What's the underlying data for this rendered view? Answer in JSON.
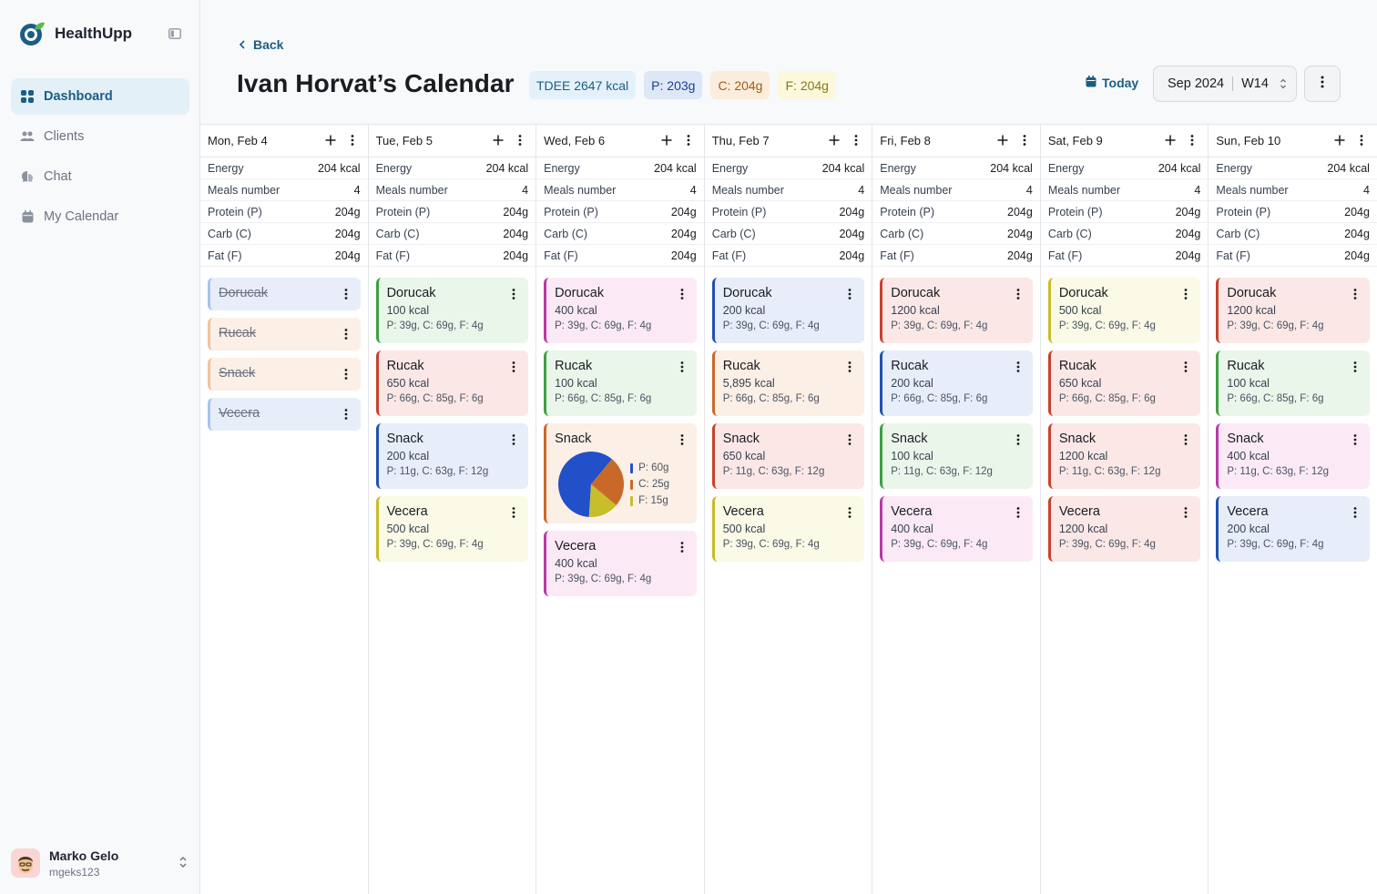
{
  "brand": {
    "name": "HealthUpp"
  },
  "nav": [
    {
      "label": "Dashboard",
      "icon": "grid-icon",
      "active": true
    },
    {
      "label": "Clients",
      "icon": "users-icon",
      "active": false
    },
    {
      "label": "Chat",
      "icon": "chat-icon",
      "active": false
    },
    {
      "label": "My Calendar",
      "icon": "calendar-icon",
      "active": false
    }
  ],
  "user": {
    "name": "Marko Gelo",
    "handle": "mgeks123"
  },
  "header": {
    "back_label": "Back",
    "title": "Ivan Horvat’s Calendar",
    "chips": [
      {
        "label": "TDEE 2647 kcal",
        "bg": "#e4f1fa",
        "fg": "#1b5e84"
      },
      {
        "label": "P: 203g",
        "bg": "#dde7f7",
        "fg": "#1f3f8a"
      },
      {
        "label": "C: 204g",
        "bg": "#fbeddc",
        "fg": "#a35a16"
      },
      {
        "label": "F: 204g",
        "bg": "#fbf8dc",
        "fg": "#8a7a14"
      }
    ],
    "today_label": "Today",
    "period_month": "Sep 2024",
    "period_week": "W14"
  },
  "stat_labels": [
    "Energy",
    "Meals number",
    "Protein (P)",
    "Carb (C)",
    "Fat (F)"
  ],
  "colors": {
    "pink": {
      "bg": "#fbeaf6",
      "border": "#b83aa8"
    },
    "green": {
      "bg": "#ebf6ea",
      "border": "#3ea044"
    },
    "red": {
      "bg": "#fbe8e6",
      "border": "#c8422c"
    },
    "blue": {
      "bg": "#e7eef9",
      "border": "#2150b5"
    },
    "yellow": {
      "bg": "#fafae6",
      "border": "#c8bd2a"
    },
    "orange": {
      "bg": "#fbefe6",
      "border": "#c8692a"
    },
    "lightblue": {
      "bg": "#e7eef9",
      "border": "#a8c3ea"
    },
    "lightorange": {
      "bg": "#fbefe6",
      "border": "#f0c39e"
    }
  },
  "days": [
    {
      "label": "Mon, Feb 4",
      "stats": [
        "204 kcal",
        "4",
        "204g",
        "204g",
        "204g"
      ],
      "meals": [
        {
          "name": "Dorucak",
          "crossed": true,
          "color": "lightblue"
        },
        {
          "name": "Rucak",
          "crossed": true,
          "color": "lightorange"
        },
        {
          "name": "Snack",
          "crossed": true,
          "color": "lightorange"
        },
        {
          "name": "Vecera",
          "crossed": true,
          "color": "lightblue"
        }
      ]
    },
    {
      "label": "Tue, Feb 5",
      "stats": [
        "204 kcal",
        "4",
        "204g",
        "204g",
        "204g"
      ],
      "meals": [
        {
          "name": "Dorucak",
          "kcal": "100 kcal",
          "macros": "P: 39g, C: 69g, F: 4g",
          "color": "green"
        },
        {
          "name": "Rucak",
          "kcal": "650 kcal",
          "macros": "P: 66g, C: 85g, F: 6g",
          "color": "red"
        },
        {
          "name": "Snack",
          "kcal": "200 kcal",
          "macros": "P: 11g, C: 63g, F: 12g",
          "color": "blue"
        },
        {
          "name": "Vecera",
          "kcal": "500 kcal",
          "macros": "P: 39g, C: 69g, F: 4g",
          "color": "yellow"
        }
      ]
    },
    {
      "label": "Wed, Feb 6",
      "stats": [
        "204 kcal",
        "4",
        "204g",
        "204g",
        "204g"
      ],
      "meals": [
        {
          "name": "Dorucak",
          "kcal": "400 kcal",
          "macros": "P: 39g, C: 69g, F: 4g",
          "color": "pink"
        },
        {
          "name": "Rucak",
          "kcal": "100 kcal",
          "macros": "P: 66g, C: 85g, F: 6g",
          "color": "green"
        },
        {
          "name": "Snack",
          "pie": true,
          "color": "orange",
          "slices": [
            {
              "label": "P: 60g",
              "value": 60,
              "color": "#2150c8"
            },
            {
              "label": "C: 25g",
              "value": 25,
              "color": "#c8692a"
            },
            {
              "label": "F: 15g",
              "value": 15,
              "color": "#c8bd2a"
            }
          ]
        },
        {
          "name": "Vecera",
          "kcal": "400 kcal",
          "macros": "P: 39g, C: 69g, F: 4g",
          "color": "pink"
        }
      ]
    },
    {
      "label": "Thu, Feb 7",
      "stats": [
        "204 kcal",
        "4",
        "204g",
        "204g",
        "204g"
      ],
      "meals": [
        {
          "name": "Dorucak",
          "kcal": "200 kcal",
          "macros": "P: 39g, C: 69g, F: 4g",
          "color": "blue"
        },
        {
          "name": "Rucak",
          "kcal": "5,895 kcal",
          "macros": "P: 66g, C: 85g, F: 6g",
          "color": "orange"
        },
        {
          "name": "Snack",
          "kcal": "650 kcal",
          "macros": "P: 11g, C: 63g, F: 12g",
          "color": "red"
        },
        {
          "name": "Vecera",
          "kcal": "500 kcal",
          "macros": "P: 39g, C: 69g, F: 4g",
          "color": "yellow"
        }
      ]
    },
    {
      "label": "Fri, Feb 8",
      "stats": [
        "204 kcal",
        "4",
        "204g",
        "204g",
        "204g"
      ],
      "meals": [
        {
          "name": "Dorucak",
          "kcal": "1200 kcal",
          "macros": "P: 39g, C: 69g, F: 4g",
          "color": "red"
        },
        {
          "name": "Rucak",
          "kcal": "200 kcal",
          "macros": "P: 66g, C: 85g, F: 6g",
          "color": "blue"
        },
        {
          "name": "Snack",
          "kcal": "100 kcal",
          "macros": "P: 11g, C: 63g, F: 12g",
          "color": "green"
        },
        {
          "name": "Vecera",
          "kcal": "400 kcal",
          "macros": "P: 39g, C: 69g, F: 4g",
          "color": "pink"
        }
      ]
    },
    {
      "label": "Sat, Feb 9",
      "stats": [
        "204 kcal",
        "4",
        "204g",
        "204g",
        "204g"
      ],
      "meals": [
        {
          "name": "Dorucak",
          "kcal": "500 kcal",
          "macros": "P: 39g, C: 69g, F: 4g",
          "color": "yellow"
        },
        {
          "name": "Rucak",
          "kcal": "650 kcal",
          "macros": "P: 66g, C: 85g, F: 6g",
          "color": "red"
        },
        {
          "name": "Snack",
          "kcal": "1200 kcal",
          "macros": "P: 11g, C: 63g, F: 12g",
          "color": "red"
        },
        {
          "name": "Vecera",
          "kcal": "1200 kcal",
          "macros": "P: 39g, C: 69g, F: 4g",
          "color": "red"
        }
      ]
    },
    {
      "label": "Sun, Feb 10",
      "stats": [
        "204 kcal",
        "4",
        "204g",
        "204g",
        "204g"
      ],
      "meals": [
        {
          "name": "Dorucak",
          "kcal": "1200 kcal",
          "macros": "P: 39g, C: 69g, F: 4g",
          "color": "red"
        },
        {
          "name": "Rucak",
          "kcal": "100 kcal",
          "macros": "P: 66g, C: 85g, F: 6g",
          "color": "green"
        },
        {
          "name": "Snack",
          "kcal": "400 kcal",
          "macros": "P: 11g, C: 63g, F: 12g",
          "color": "pink"
        },
        {
          "name": "Vecera",
          "kcal": "200 kcal",
          "macros": "P: 39g, C: 69g, F: 4g",
          "color": "blue"
        }
      ]
    }
  ]
}
